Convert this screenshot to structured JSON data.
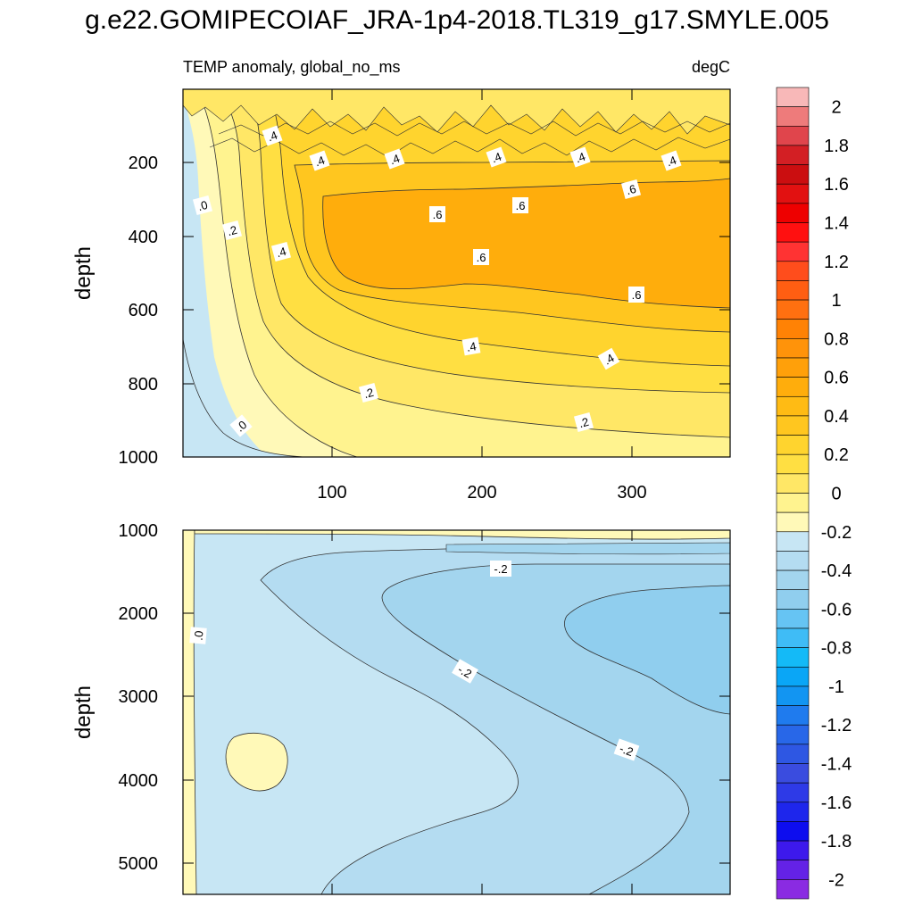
{
  "title": "g.e22.GOMIPECOIAF_JRA-1p4-2018.TL319_g17.SMYLE.005",
  "chart_data": [
    {
      "type": "contour",
      "panel": "upper",
      "left_string": "TEMP anomaly, global_no_ms",
      "right_string": "degC",
      "ylabel": "depth",
      "xlabel": "",
      "x_range": [
        0,
        365
      ],
      "y_range": [
        1000,
        0
      ],
      "x_ticks": [
        "100",
        "200",
        "300"
      ],
      "y_ticks": [
        "200",
        "400",
        "600",
        "800",
        "1000"
      ],
      "levels_drawn": [
        0,
        0.1,
        0.2,
        0.3,
        0.4,
        0.5,
        0.6
      ],
      "max_value": 0.65,
      "contour_labels": [
        ".4",
        ".4",
        ".4",
        ".4",
        ".4",
        ".4",
        ".0",
        ".2",
        ".6",
        ".6",
        ".6",
        ".4",
        ".6",
        ".6",
        ".4",
        ".4",
        ".2",
        ".0",
        ".2"
      ]
    },
    {
      "type": "contour",
      "panel": "lower",
      "left_string": "",
      "right_string": "",
      "ylabel": "depth",
      "xlabel": "",
      "x_range": [
        0,
        365
      ],
      "y_range": [
        5400,
        1000
      ],
      "x_ticks": [],
      "y_ticks": [
        "1000",
        "2000",
        "3000",
        "4000",
        "5000"
      ],
      "levels_drawn": [
        0,
        -0.1,
        -0.2,
        -0.3
      ],
      "min_value": -0.3,
      "contour_labels": [
        ".0",
        "-.2",
        "-.2",
        "-.2"
      ]
    }
  ],
  "colorbar": {
    "labels": [
      "2",
      "1.8",
      "1.6",
      "1.4",
      "1.2",
      "1",
      "0.8",
      "0.6",
      "0.4",
      "0.2",
      "0",
      "-0.2",
      "-0.4",
      "-0.6",
      "-0.8",
      "-1",
      "-1.2",
      "-1.4",
      "-1.6",
      "-1.8",
      "-2"
    ],
    "colors": [
      "#f8b8b8",
      "#ee7b7b",
      "#e0454c",
      "#d31f24",
      "#cb0e10",
      "#e21111",
      "#ee0000",
      "#ff1010",
      "#ff3333",
      "#ff4d1c",
      "#ff5e12",
      "#ff7010",
      "#ff8205",
      "#ff930a",
      "#ffa00a",
      "#ffad0c",
      "#ffbb14",
      "#ffc61f",
      "#ffd42e",
      "#ffdf42",
      "#ffe766",
      "#fff38f",
      "#fff9b8",
      "#c7e6f4",
      "#b4dcf1",
      "#a3d5ee",
      "#90ceee",
      "#66c4f3",
      "#3fbcf6",
      "#14baf7",
      "#0aa6f6",
      "#1295f2",
      "#1f7bee",
      "#2867e8",
      "#2e57e3",
      "#3a4cdf",
      "#2e3ae7",
      "#1e26ec",
      "#0d0def",
      "#3d19ec",
      "#6422e6",
      "#8a2be2"
    ]
  }
}
